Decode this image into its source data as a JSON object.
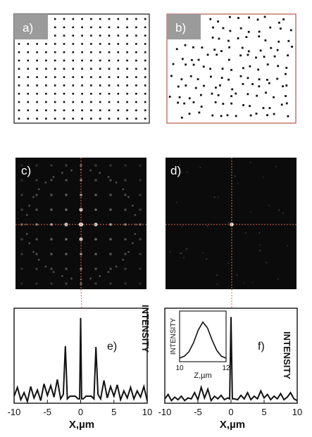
{
  "panels": {
    "a": {
      "label": "a)",
      "pattern": "square lattice of dots"
    },
    "b": {
      "label": "b)",
      "pattern": "quasi-random lattice of dots"
    },
    "c": {
      "label": "c)",
      "image": "diffraction pattern with many bright spots"
    },
    "d": {
      "label": "d)",
      "image": "diffraction pattern with single central spot"
    }
  },
  "colors": {
    "label_box": "#9b9b9b",
    "frame_a": "#444444",
    "frame_b": "#c0796c",
    "crosshair": "#e06a52",
    "curve": "#111111",
    "dark_bg": "#0b0b0b"
  },
  "chart_data": [
    {
      "type": "line",
      "panel_label": "e)",
      "title": "",
      "xlabel": "X,µm",
      "ylabel": "INTENSITY",
      "xlim": [
        -10,
        10
      ],
      "xticks": [
        "-10",
        "-5",
        "0",
        "5",
        "10"
      ],
      "ylim": [
        0,
        1
      ],
      "legend": "none",
      "x": [
        -10,
        -9.5,
        -9,
        -8.5,
        -8,
        -7.5,
        -7,
        -6.5,
        -6,
        -5.5,
        -5,
        -4.5,
        -4,
        -3.5,
        -3,
        -2.6,
        -2.3,
        -2,
        -1.6,
        -1.2,
        -0.8,
        -0.4,
        -0.15,
        0,
        0.15,
        0.4,
        0.8,
        1.2,
        1.6,
        2,
        2.3,
        2.6,
        3,
        3.5,
        4,
        4.5,
        5,
        5.5,
        6,
        6.5,
        7,
        7.5,
        8,
        8.5,
        9,
        9.5,
        10
      ],
      "series": [
        {
          "values": [
            0.08,
            0.18,
            0.04,
            0.12,
            0.02,
            0.19,
            0.06,
            0.15,
            0.03,
            0.22,
            0.09,
            0.2,
            0.07,
            0.27,
            0.05,
            0.1,
            0.65,
            0.05,
            0.08,
            0.08,
            0.08,
            0.05,
            0.05,
            0.97,
            0.05,
            0.05,
            0.08,
            0.08,
            0.08,
            0.05,
            0.64,
            0.1,
            0.05,
            0.26,
            0.06,
            0.19,
            0.08,
            0.21,
            0.04,
            0.14,
            0.06,
            0.18,
            0.05,
            0.14,
            0.07,
            0.19,
            0.03
          ]
        }
      ]
    },
    {
      "type": "line",
      "panel_label": "f)",
      "title": "",
      "xlabel": "X,µm",
      "ylabel": "INTENSITY",
      "xlim": [
        -10,
        10
      ],
      "xticks": [
        "-10",
        "-5",
        "0",
        "5",
        "10"
      ],
      "ylim": [
        0,
        1
      ],
      "legend": "none",
      "x": [
        -10,
        -9.5,
        -9,
        -8.5,
        -8,
        -7.5,
        -7,
        -6.5,
        -6,
        -5.5,
        -5,
        -4.5,
        -4,
        -3.5,
        -3,
        -2.5,
        -2,
        -1.5,
        -1,
        -0.5,
        -0.2,
        0,
        0.2,
        0.5,
        1,
        1.5,
        2,
        2.5,
        3,
        3.5,
        4,
        4.5,
        5,
        5.5,
        6,
        6.5,
        7,
        7.5,
        8,
        8.5,
        9,
        9.5,
        10
      ],
      "series": [
        {
          "values": [
            0.05,
            0.1,
            0.03,
            0.07,
            0.04,
            0.08,
            0.03,
            0.06,
            0.05,
            0.12,
            0.04,
            0.18,
            0.06,
            0.16,
            0.03,
            0.08,
            0.05,
            0.09,
            0.04,
            0.06,
            0.05,
            0.98,
            0.05,
            0.05,
            0.04,
            0.09,
            0.05,
            0.12,
            0.04,
            0.08,
            0.05,
            0.14,
            0.06,
            0.1,
            0.04,
            0.08,
            0.05,
            0.11,
            0.04,
            0.07,
            0.12,
            0.05,
            0.03
          ]
        }
      ]
    },
    {
      "type": "line",
      "panel_label": "",
      "title": "",
      "xlabel": "Z,µm",
      "ylabel": "INTENSITY",
      "xlim": [
        10,
        12
      ],
      "xticks": [
        "10",
        "12"
      ],
      "ylim": [
        0,
        1
      ],
      "legend": "none",
      "x": [
        10,
        10.2,
        10.4,
        10.6,
        10.8,
        11,
        11.2,
        11.4,
        11.6,
        11.8,
        12
      ],
      "series": [
        {
          "values": [
            0.08,
            0.12,
            0.22,
            0.42,
            0.7,
            0.88,
            0.75,
            0.48,
            0.25,
            0.12,
            0.08
          ]
        }
      ]
    }
  ]
}
